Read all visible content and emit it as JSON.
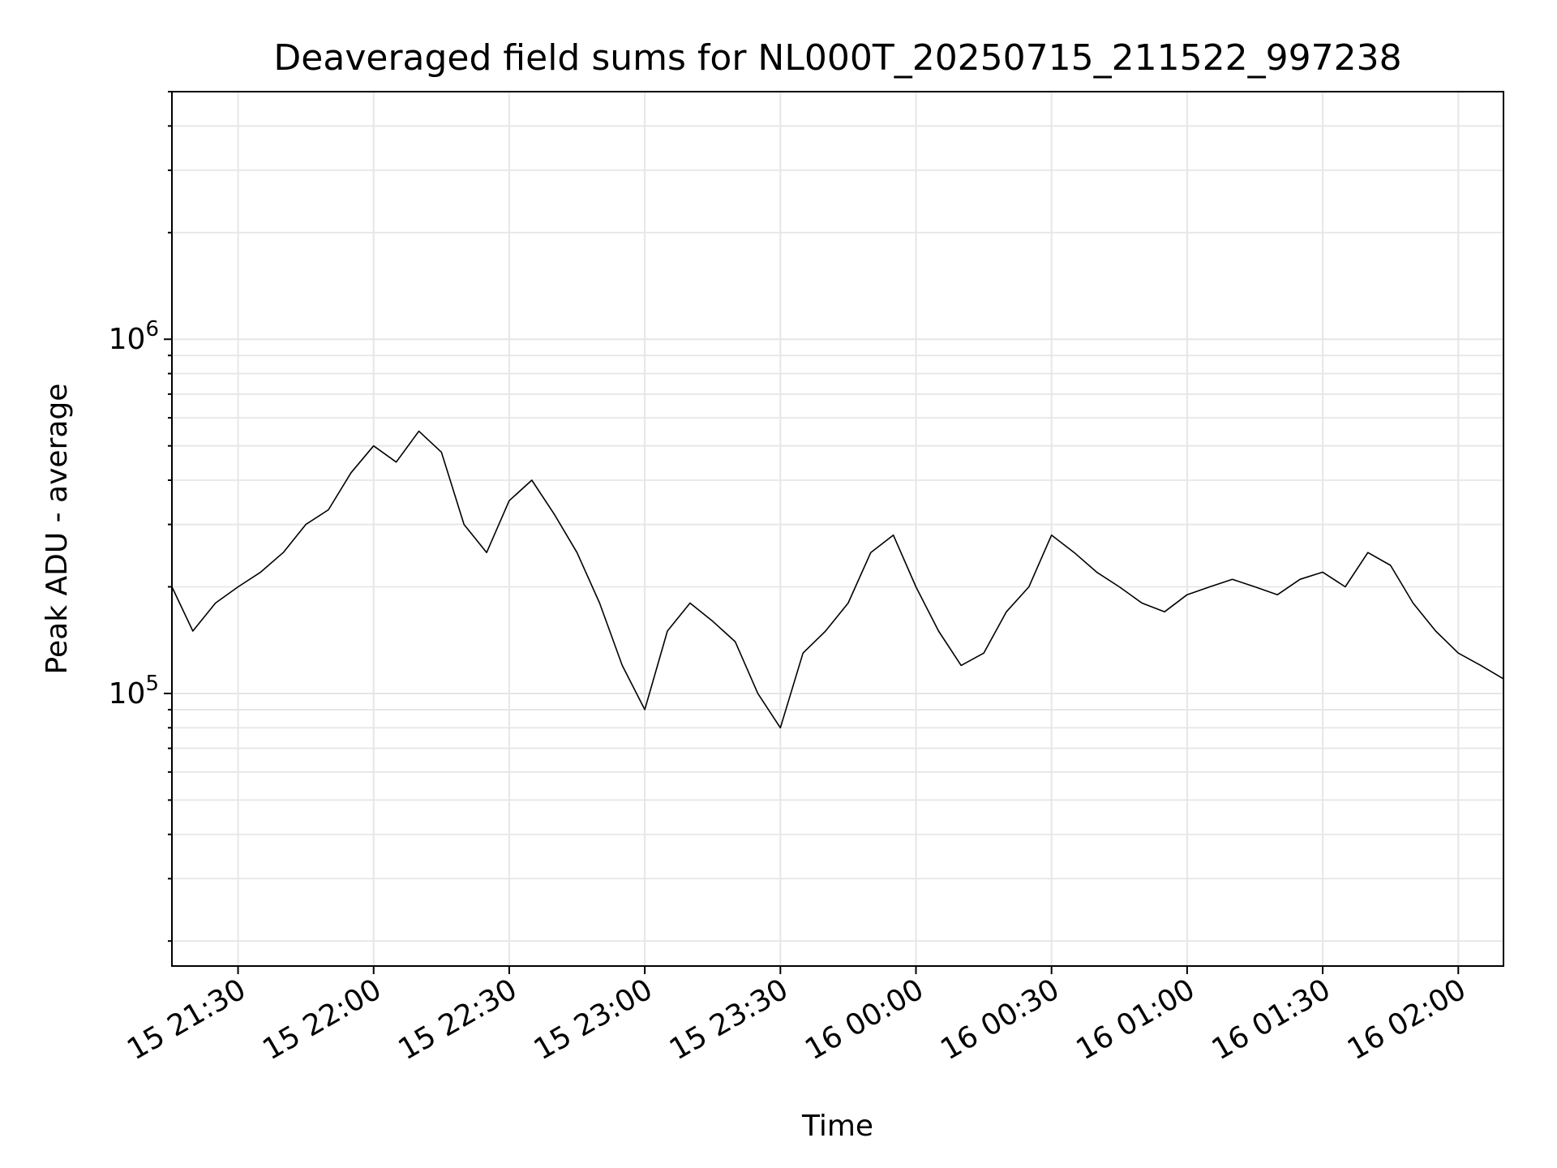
{
  "chart_data": {
    "type": "line",
    "title": "Deaveraged field sums for NL000T_20250715_211522_997238",
    "xlabel": "Time",
    "ylabel": "Peak ADU - average",
    "yscale": "log",
    "xlim": [
      "15 21:15:22",
      "16 02:10:00"
    ],
    "ylim": [
      17000,
      5000000
    ],
    "grid": true,
    "line_color": "#000000",
    "x_ticks": [
      "15 21:30",
      "15 22:00",
      "15 22:30",
      "15 23:00",
      "15 23:30",
      "16 00:00",
      "16 00:30",
      "16 01:00",
      "16 01:30",
      "16 02:00"
    ],
    "y_ticks": [
      {
        "base": "10",
        "exp": "5",
        "value": 100000
      },
      {
        "base": "10",
        "exp": "6",
        "value": 1000000
      }
    ],
    "series": [
      {
        "x": [
          "15 21:15",
          "15 21:20",
          "15 21:25",
          "15 21:30",
          "15 21:35",
          "15 21:40",
          "15 21:45",
          "15 21:50",
          "15 21:55",
          "15 22:00",
          "15 22:05",
          "15 22:10",
          "15 22:15",
          "15 22:20",
          "15 22:25",
          "15 22:30",
          "15 22:35",
          "15 22:40",
          "15 22:45",
          "15 22:50",
          "15 22:55",
          "15 23:00",
          "15 23:05",
          "15 23:10",
          "15 23:15",
          "15 23:20",
          "15 23:25",
          "15 23:30",
          "15 23:35",
          "15 23:40",
          "15 23:45",
          "15 23:50",
          "15 23:55",
          "16 00:00",
          "16 00:05",
          "16 00:10",
          "16 00:15",
          "16 00:20",
          "16 00:25",
          "16 00:30",
          "16 00:35",
          "16 00:40",
          "16 00:45",
          "16 00:50",
          "16 00:55",
          "16 01:00",
          "16 01:05",
          "16 01:10",
          "16 01:15",
          "16 01:20",
          "16 01:25",
          "16 01:30",
          "16 01:35",
          "16 01:40",
          "16 01:45",
          "16 01:50",
          "16 01:55",
          "16 02:00",
          "16 02:05",
          "16 02:10"
        ],
        "y": [
          200000,
          150000,
          180000,
          200000,
          220000,
          250000,
          300000,
          330000,
          420000,
          500000,
          450000,
          550000,
          480000,
          300000,
          250000,
          350000,
          400000,
          320000,
          250000,
          180000,
          120000,
          90000,
          150000,
          180000,
          160000,
          140000,
          100000,
          80000,
          130000,
          150000,
          180000,
          250000,
          280000,
          200000,
          150000,
          120000,
          130000,
          170000,
          200000,
          280000,
          250000,
          220000,
          200000,
          180000,
          170000,
          190000,
          200000,
          210000,
          200000,
          190000,
          210000,
          220000,
          200000,
          250000,
          230000,
          180000,
          150000,
          130000,
          120000,
          110000
        ]
      }
    ]
  }
}
